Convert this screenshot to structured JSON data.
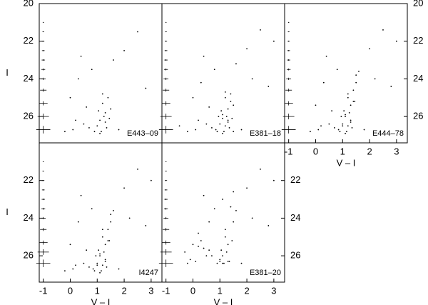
{
  "chart_data": [
    {
      "type": "scatter",
      "label": "E443–09",
      "xlim": [
        -1.15,
        3.4
      ],
      "ylim": [
        27.4,
        20
      ],
      "yticks": [
        20,
        22,
        24,
        26
      ],
      "ytick_side": "left",
      "ylabel": "I",
      "color": "#000000",
      "x": [
        1.2,
        1.3,
        1.1,
        1.4,
        1.0,
        1.25,
        1.35,
        0.9,
        1.5,
        0.3,
        0.5,
        0.1,
        -0.2,
        0.8,
        1.6,
        2.0,
        2.5,
        1.2,
        0.6,
        0.2,
        1.1,
        1.3,
        0.0,
        1.45,
        0.7,
        2.8,
        1.8,
        1.05,
        0.4,
        1.15
      ],
      "y": [
        25.3,
        25.8,
        26.2,
        25.0,
        26.5,
        26.0,
        26.6,
        26.8,
        25.6,
        24.0,
        26.4,
        26.7,
        26.8,
        23.5,
        23.0,
        22.5,
        21.5,
        24.8,
        25.5,
        26.2,
        26.9,
        26.3,
        25.0,
        26.1,
        26.6,
        24.5,
        26.7,
        25.7,
        22.8,
        26.8
      ],
      "errorbars": {
        "x": [
          -1,
          -1,
          -1,
          -1,
          -1,
          -1,
          -1,
          -1,
          -1,
          -1,
          -1
        ],
        "y": [
          21.0,
          21.5,
          22.0,
          22.5,
          23.0,
          23.5,
          24.0,
          24.6,
          25.3,
          26.0,
          26.7
        ],
        "xerr": [
          0.02,
          0.03,
          0.04,
          0.05,
          0.06,
          0.07,
          0.09,
          0.12,
          0.16,
          0.21,
          0.26
        ],
        "yerr": [
          0.02,
          0.02,
          0.03,
          0.03,
          0.04,
          0.05,
          0.06,
          0.08,
          0.11,
          0.15,
          0.2
        ]
      }
    },
    {
      "type": "scatter",
      "label": "E381–18",
      "xlim": [
        -1.15,
        3.4
      ],
      "ylim": [
        27.4,
        20
      ],
      "color": "#000000",
      "x": [
        1.2,
        1.3,
        1.1,
        1.4,
        1.0,
        1.25,
        1.35,
        0.9,
        1.5,
        0.3,
        0.5,
        0.1,
        -0.2,
        0.8,
        1.6,
        2.0,
        2.5,
        1.2,
        0.6,
        0.2,
        1.1,
        1.3,
        0.0,
        1.45,
        0.7,
        2.8,
        1.8,
        1.05,
        0.4,
        1.15,
        1.2,
        1.3,
        0.95,
        1.4,
        0.85,
        1.1,
        2.2,
        3.0,
        -0.5,
        1.5
      ],
      "y": [
        25.0,
        25.6,
        26.1,
        24.8,
        26.4,
        26.0,
        26.6,
        26.8,
        25.4,
        24.2,
        26.4,
        26.7,
        26.8,
        23.5,
        23.2,
        22.4,
        21.4,
        24.7,
        25.5,
        26.2,
        26.9,
        26.3,
        25.0,
        26.1,
        26.6,
        24.4,
        26.7,
        25.7,
        22.8,
        26.8,
        26.5,
        26.2,
        26.0,
        25.2,
        26.7,
        25.9,
        24.0,
        22.0,
        26.5,
        26.8
      ],
      "errorbars": {
        "x": [
          -1,
          -1,
          -1,
          -1,
          -1,
          -1,
          -1,
          -1,
          -1,
          -1,
          -1
        ],
        "y": [
          21.0,
          21.5,
          22.0,
          22.5,
          23.0,
          23.5,
          24.0,
          24.6,
          25.3,
          26.0,
          26.7
        ],
        "xerr": [
          0.02,
          0.03,
          0.04,
          0.05,
          0.06,
          0.07,
          0.09,
          0.12,
          0.16,
          0.21,
          0.26
        ],
        "yerr": [
          0.02,
          0.02,
          0.03,
          0.03,
          0.04,
          0.05,
          0.06,
          0.08,
          0.11,
          0.15,
          0.2
        ]
      }
    },
    {
      "type": "scatter",
      "label": "E444–78",
      "xlim": [
        -1.15,
        3.4
      ],
      "ylim": [
        27.4,
        20
      ],
      "xticks": [
        -1,
        0,
        1,
        2,
        3
      ],
      "yticks": [
        20,
        22,
        24,
        26
      ],
      "ytick_side": "right",
      "xlabel": "V – I",
      "color": "#000000",
      "x": [
        1.2,
        1.3,
        1.1,
        1.4,
        1.0,
        1.25,
        1.35,
        0.9,
        1.5,
        0.3,
        0.5,
        0.1,
        -0.2,
        0.8,
        1.6,
        2.0,
        2.5,
        1.2,
        0.6,
        0.2,
        1.1,
        1.3,
        0.0,
        1.45,
        0.7,
        2.8,
        1.8,
        1.05,
        0.4,
        1.15,
        1.2,
        1.3,
        0.95,
        1.4,
        0.85,
        1.1,
        2.2,
        3.0,
        1.0,
        1.5
      ],
      "y": [
        24.8,
        25.4,
        26.0,
        24.6,
        26.4,
        25.8,
        26.6,
        26.8,
        24.2,
        24.2,
        26.4,
        26.7,
        26.8,
        23.5,
        23.6,
        22.4,
        21.4,
        25.0,
        25.7,
        26.5,
        26.9,
        26.3,
        25.4,
        25.2,
        26.6,
        24.4,
        26.7,
        25.7,
        22.8,
        26.8,
        26.5,
        26.2,
        26.0,
        25.2,
        26.7,
        25.9,
        24.0,
        22.0,
        26.5,
        23.8
      ],
      "errorbars": {
        "x": [
          -1,
          -1,
          -1,
          -1,
          -1,
          -1,
          -1,
          -1,
          -1,
          -1,
          -1
        ],
        "y": [
          21.0,
          21.5,
          22.0,
          22.5,
          23.0,
          23.5,
          24.0,
          24.6,
          25.3,
          26.0,
          26.7
        ],
        "xerr": [
          0.02,
          0.03,
          0.04,
          0.05,
          0.06,
          0.07,
          0.09,
          0.12,
          0.16,
          0.21,
          0.26
        ],
        "yerr": [
          0.02,
          0.02,
          0.03,
          0.03,
          0.04,
          0.05,
          0.06,
          0.08,
          0.11,
          0.15,
          0.2
        ]
      }
    },
    {
      "type": "scatter",
      "label": "I4247",
      "xlim": [
        -1.15,
        3.4
      ],
      "ylim": [
        27.4,
        20
      ],
      "xticks": [
        -1,
        0,
        1,
        2,
        3
      ],
      "yticks": [
        22,
        24,
        26
      ],
      "ytick_side": "left",
      "ylabel": "I",
      "xlabel": "V – I",
      "color": "#000000",
      "x": [
        1.2,
        1.3,
        1.1,
        1.4,
        1.0,
        1.25,
        1.35,
        0.9,
        1.5,
        0.3,
        0.5,
        0.1,
        -0.2,
        0.8,
        1.6,
        2.0,
        2.5,
        1.2,
        0.6,
        0.2,
        1.1,
        1.3,
        0.0,
        1.45,
        0.7,
        2.8,
        1.8,
        1.05,
        0.4,
        1.15,
        1.2,
        1.3,
        0.95,
        1.4,
        0.85,
        1.1,
        2.2,
        3.0,
        1.0,
        1.5
      ],
      "y": [
        24.6,
        25.4,
        26.0,
        24.6,
        26.4,
        25.8,
        26.6,
        26.8,
        24.2,
        24.2,
        26.4,
        26.7,
        26.8,
        23.5,
        23.6,
        22.4,
        21.4,
        25.0,
        25.7,
        26.5,
        26.9,
        26.3,
        25.4,
        25.2,
        26.6,
        24.4,
        26.7,
        25.7,
        22.8,
        26.8,
        26.5,
        26.2,
        26.0,
        25.2,
        26.7,
        25.9,
        24.0,
        22.0,
        26.5,
        23.8
      ],
      "errorbars": {
        "x": [
          -1,
          -1,
          -1,
          -1,
          -1,
          -1,
          -1,
          -1,
          -1,
          -1,
          -1
        ],
        "y": [
          21.0,
          21.5,
          22.0,
          22.5,
          23.0,
          23.5,
          24.0,
          24.6,
          25.3,
          25.8,
          26.4
        ],
        "xerr": [
          0.02,
          0.03,
          0.04,
          0.05,
          0.06,
          0.07,
          0.09,
          0.12,
          0.16,
          0.21,
          0.26
        ],
        "yerr": [
          0.02,
          0.02,
          0.03,
          0.03,
          0.04,
          0.05,
          0.06,
          0.08,
          0.11,
          0.15,
          0.2
        ]
      }
    },
    {
      "type": "scatter",
      "label": "E381–20",
      "xlim": [
        -1.15,
        3.4
      ],
      "ylim": [
        27.4,
        20
      ],
      "xticks": [
        -1,
        0,
        1,
        2,
        3
      ],
      "yticks": [
        22,
        24,
        26
      ],
      "ytick_side": "right",
      "xlabel": "V – I",
      "color": "#000000",
      "x": [
        1.2,
        1.3,
        1.1,
        1.4,
        1.0,
        1.25,
        1.35,
        0.9,
        1.5,
        0.3,
        0.5,
        0.1,
        -0.2,
        0.8,
        1.6,
        2.0,
        2.5,
        1.2,
        0.6,
        0.2,
        1.1,
        1.3,
        0.0,
        1.45,
        0.7,
        2.8,
        1.8,
        1.05,
        0.4,
        1.15,
        -0.3,
        0.2,
        0.6,
        -0.1,
        0.4,
        1.1,
        2.2,
        3.0,
        1.0,
        1.5
      ],
      "y": [
        24.6,
        25.4,
        26.0,
        23.4,
        26.2,
        25.8,
        26.3,
        26.4,
        24.2,
        25.2,
        26.0,
        26.3,
        26.4,
        23.5,
        23.6,
        22.4,
        21.4,
        25.0,
        25.7,
        25.5,
        26.4,
        26.3,
        25.4,
        25.2,
        26.0,
        24.4,
        26.4,
        25.7,
        22.8,
        26.4,
        25.8,
        24.8,
        24.2,
        26.2,
        25.6,
        23.0,
        24.0,
        22.0,
        26.3,
        22.6
      ],
      "errorbars": {
        "x": [
          -1,
          -1,
          -1,
          -1,
          -1,
          -1,
          -1,
          -1,
          -1,
          -1,
          -1
        ],
        "y": [
          21.0,
          21.5,
          22.0,
          22.5,
          23.0,
          23.5,
          24.0,
          24.6,
          25.3,
          25.8,
          26.4
        ],
        "xerr": [
          0.02,
          0.03,
          0.04,
          0.05,
          0.06,
          0.07,
          0.09,
          0.12,
          0.16,
          0.21,
          0.26
        ],
        "yerr": [
          0.02,
          0.02,
          0.03,
          0.03,
          0.04,
          0.05,
          0.06,
          0.08,
          0.11,
          0.15,
          0.2
        ]
      }
    }
  ]
}
